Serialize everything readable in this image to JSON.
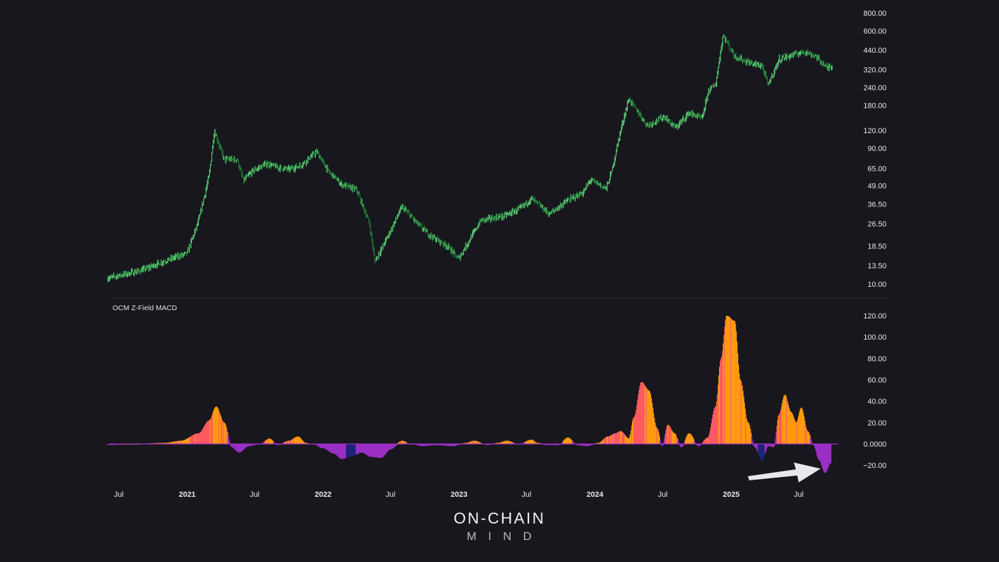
{
  "indicator_title": "OCM Z-Field MACD",
  "logo": {
    "line1": "ON-CHAIN",
    "line2": "MIND"
  },
  "colors": {
    "background": "#17171d",
    "price_up": "#5fd17a",
    "price_down": "#1f7a33",
    "hist_red": "#ff5a5f",
    "hist_orange": "#ff9a10",
    "hist_purple": "#9b2fc4",
    "hist_navy": "#1b2478",
    "arrow": "#e8e8ea"
  },
  "chart_data": [
    {
      "type": "line",
      "y_scale": "log",
      "price_axis_ticks": [
        "800.00",
        "600.00",
        "440.00",
        "320.00",
        "240.00",
        "180.00",
        "120.00",
        "90.00",
        "65.00",
        "49.00",
        "36.50",
        "26.50",
        "18.50",
        "13.50",
        "10.00"
      ],
      "x_axis_ticks": [
        {
          "label": "Jul",
          "date": "2020-07"
        },
        {
          "label": "2021",
          "date": "2021-01"
        },
        {
          "label": "Jul",
          "date": "2021-07"
        },
        {
          "label": "2022",
          "date": "2022-01"
        },
        {
          "label": "Jul",
          "date": "2022-07"
        },
        {
          "label": "2023",
          "date": "2023-01"
        },
        {
          "label": "Jul",
          "date": "2023-07"
        },
        {
          "label": "2024",
          "date": "2024-01"
        },
        {
          "label": "Jul",
          "date": "2024-07"
        },
        {
          "label": "2025",
          "date": "2025-01"
        },
        {
          "label": "Jul",
          "date": "2025-07"
        }
      ],
      "series": [
        {
          "x": [
            "2020-06-01",
            "2020-07-01",
            "2020-09-01",
            "2020-11-01",
            "2021-01-01",
            "2021-02-01",
            "2021-03-01",
            "2021-03-15",
            "2021-04-10",
            "2021-05-15",
            "2021-06-01",
            "2021-06-25",
            "2021-08-01",
            "2021-09-01",
            "2021-10-01",
            "2021-11-01",
            "2021-12-15",
            "2022-01-15",
            "2022-02-20",
            "2022-04-01",
            "2022-05-05",
            "2022-05-20",
            "2022-06-25",
            "2022-08-01",
            "2022-09-15",
            "2022-10-15",
            "2022-12-01",
            "2022-12-30",
            "2023-03-01",
            "2023-05-01",
            "2023-06-15",
            "2023-07-15",
            "2023-09-01",
            "2023-10-15",
            "2023-12-01",
            "2023-12-20",
            "2024-02-01",
            "2024-02-15",
            "2024-03-10",
            "2024-04-01",
            "2024-05-20",
            "2024-07-05",
            "2024-08-05",
            "2024-09-10",
            "2024-10-15",
            "2024-11-01",
            "2024-11-20",
            "2024-12-10",
            "2025-01-10",
            "2025-02-15",
            "2025-03-25",
            "2025-04-10",
            "2025-05-10",
            "2025-07-15",
            "2025-08-15",
            "2025-09-15",
            "2025-09-30"
          ],
          "y": [
            11,
            11.5,
            12.5,
            14.5,
            16.5,
            28,
            58,
            120,
            75,
            75,
            53,
            62,
            70,
            66,
            64,
            68,
            85,
            62,
            50,
            46,
            27,
            14.5,
            22,
            35,
            26,
            22,
            18.5,
            15,
            28,
            30,
            34,
            40,
            31,
            38,
            44,
            54,
            47,
            62,
            120,
            200,
            130,
            150,
            125,
            160,
            145,
            230,
            250,
            560,
            400,
            360,
            340,
            250,
            380,
            430,
            400,
            330,
            345
          ]
        }
      ],
      "ylim": [
        9,
        900
      ]
    },
    {
      "type": "bar",
      "title": "OCM Z-Field MACD",
      "y_axis_ticks": [
        "120.00",
        "100.00",
        "80.00",
        "60.00",
        "40.00",
        "20.00",
        "0.0000",
        "−20.00"
      ],
      "ylim": [
        -27,
        124
      ],
      "series": [
        {
          "x": [
            "2020-06-01",
            "2020-08-15",
            "2020-11-01",
            "2020-12-15",
            "2021-02-01",
            "2021-03-01",
            "2021-03-20",
            "2021-04-10",
            "2021-05-01",
            "2021-05-20",
            "2021-06-15",
            "2021-07-15",
            "2021-08-10",
            "2021-09-01",
            "2021-10-01",
            "2021-10-25",
            "2021-11-15",
            "2021-12-05",
            "2022-01-01",
            "2022-01-30",
            "2022-02-20",
            "2022-03-15",
            "2022-04-15",
            "2022-05-10",
            "2022-06-05",
            "2022-07-01",
            "2022-08-01",
            "2022-08-25",
            "2022-09-25",
            "2022-11-01",
            "2022-12-15",
            "2023-01-20",
            "2023-02-10",
            "2023-03-20",
            "2023-04-15",
            "2023-05-10",
            "2023-06-10",
            "2023-07-15",
            "2023-07-30",
            "2023-08-25",
            "2023-09-25",
            "2023-10-20",
            "2023-11-15",
            "2023-12-10",
            "2024-01-10",
            "2024-02-05",
            "2024-02-25",
            "2024-03-10",
            "2024-04-01",
            "2024-04-15",
            "2024-05-05",
            "2024-05-25",
            "2024-06-15",
            "2024-06-30",
            "2024-07-15",
            "2024-08-01",
            "2024-08-20",
            "2024-09-10",
            "2024-10-05",
            "2024-10-30",
            "2024-11-20",
            "2024-12-05",
            "2024-12-20",
            "2025-01-10",
            "2025-01-25",
            "2025-02-15",
            "2025-03-05",
            "2025-03-25",
            "2025-04-10",
            "2025-04-25",
            "2025-05-10",
            "2025-05-25",
            "2025-06-10",
            "2025-06-25",
            "2025-07-08",
            "2025-07-25",
            "2025-08-10",
            "2025-08-25",
            "2025-09-10",
            "2025-09-25"
          ],
          "values": [
            -1,
            0,
            1,
            3,
            10,
            22,
            35,
            20,
            -3,
            -8,
            -2,
            0,
            5,
            -1,
            3,
            7,
            1,
            0,
            -4,
            -9,
            -14,
            -12,
            -8,
            -12,
            -13,
            -5,
            3,
            0,
            -2,
            -1,
            -2,
            1,
            3,
            -1,
            1,
            3,
            0,
            4,
            1,
            -1,
            -1,
            6,
            -1,
            -2,
            1,
            7,
            10,
            12,
            5,
            25,
            58,
            50,
            15,
            -2,
            18,
            10,
            -3,
            10,
            -2,
            6,
            35,
            80,
            120,
            115,
            60,
            20,
            -3,
            -15,
            -2,
            -3,
            28,
            46,
            30,
            20,
            34,
            12,
            -1,
            -15,
            -27,
            -18
          ],
          "colors": [
            "purple",
            "orange",
            "orange",
            "orange",
            "red",
            "red",
            "orange",
            "orange",
            "purple",
            "purple",
            "purple",
            "purple",
            "orange",
            "purple",
            "red",
            "orange",
            "orange",
            "purple",
            "purple",
            "purple",
            "purple",
            "navy",
            "purple",
            "purple",
            "purple",
            "purple",
            "orange",
            "purple",
            "purple",
            "purple",
            "purple",
            "orange",
            "orange",
            "purple",
            "orange",
            "orange",
            "purple",
            "orange",
            "orange",
            "purple",
            "purple",
            "orange",
            "purple",
            "purple",
            "orange",
            "red",
            "red",
            "red",
            "orange",
            "red",
            "red",
            "orange",
            "orange",
            "purple",
            "red",
            "orange",
            "purple",
            "orange",
            "purple",
            "red",
            "red",
            "red",
            "orange",
            "orange",
            "orange",
            "orange",
            "purple",
            "navy",
            "purple",
            "purple",
            "red",
            "orange",
            "orange",
            "orange",
            "orange",
            "orange",
            "purple",
            "purple",
            "purple",
            "purple"
          ]
        }
      ]
    }
  ]
}
